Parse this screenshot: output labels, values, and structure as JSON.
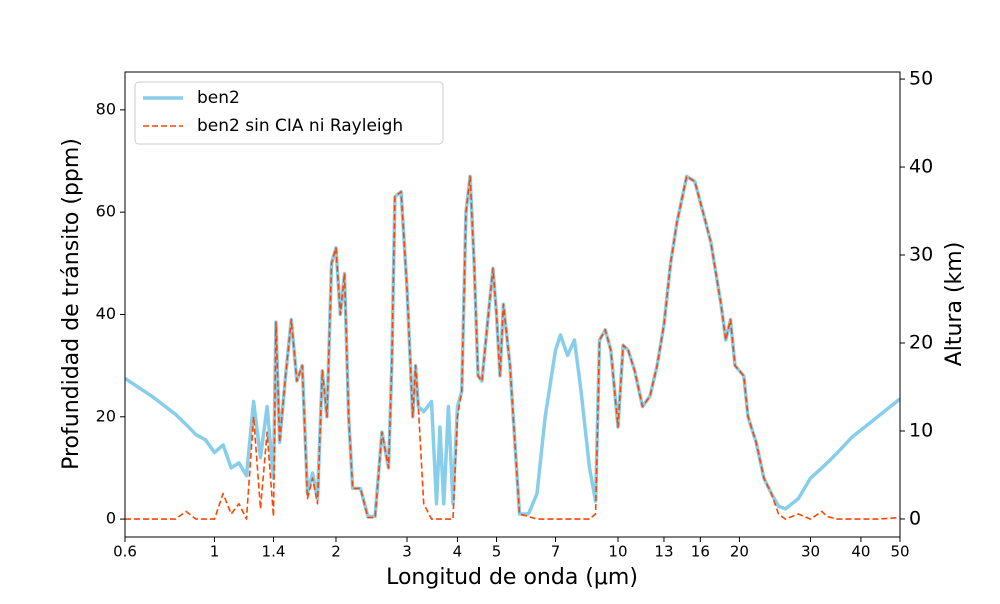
{
  "chart_data": {
    "type": "line",
    "xlabel": "Longitud de onda (μm)",
    "ylabel": "Profundidad de tránsito (ppm)",
    "y2label": "Altura (km)",
    "xscale": "log",
    "xlim": [
      0.6,
      50
    ],
    "xticks": [
      0.6,
      1,
      1.4,
      2,
      3,
      4,
      5,
      7,
      10,
      13,
      16,
      20,
      30,
      40,
      50
    ],
    "ylim": [
      -3.5,
      87.4
    ],
    "yticks": [
      0,
      20,
      40,
      60,
      80
    ],
    "y2lim": [
      -2.05,
      50.8
    ],
    "y2ticks": [
      0,
      10,
      20,
      30,
      40,
      50
    ],
    "legend": "upper left",
    "x": [
      0.6,
      0.7,
      0.8,
      0.85,
      0.9,
      0.95,
      1.0,
      1.05,
      1.1,
      1.15,
      1.2,
      1.25,
      1.3,
      1.35,
      1.4,
      1.42,
      1.45,
      1.5,
      1.55,
      1.6,
      1.65,
      1.7,
      1.75,
      1.8,
      1.85,
      1.9,
      1.95,
      2.0,
      2.05,
      2.1,
      2.15,
      2.2,
      2.3,
      2.4,
      2.5,
      2.6,
      2.7,
      2.75,
      2.8,
      2.9,
      3.0,
      3.1,
      3.15,
      3.2,
      3.3,
      3.45,
      3.55,
      3.62,
      3.7,
      3.8,
      3.9,
      4.0,
      4.1,
      4.2,
      4.3,
      4.4,
      4.5,
      4.6,
      4.8,
      4.9,
      5.0,
      5.1,
      5.2,
      5.4,
      5.5,
      5.7,
      6.0,
      6.3,
      6.6,
      7.0,
      7.2,
      7.5,
      7.8,
      8.1,
      8.5,
      8.8,
      9.0,
      9.3,
      9.6,
      10,
      10.3,
      10.6,
      11,
      11.5,
      12,
      12.5,
      13,
      13.5,
      14,
      14.8,
      15.5,
      16.5,
      17,
      18,
      18.5,
      19,
      19.5,
      20.5,
      21,
      22,
      23,
      24,
      25,
      26,
      28,
      30,
      32,
      33,
      35,
      38,
      44,
      50
    ],
    "series": [
      {
        "name": "ben2",
        "color": "#87ceeb",
        "linestyle": "solid",
        "linewidth": 3.5,
        "values": [
          27.5,
          24,
          20.5,
          18.5,
          16.5,
          15.5,
          13,
          14.5,
          10,
          11,
          8.5,
          23,
          12,
          22,
          8,
          38.5,
          15,
          28,
          39,
          27,
          30,
          5,
          9,
          4,
          29,
          20,
          50,
          53,
          40,
          48,
          20,
          6,
          6,
          0.5,
          0.5,
          17,
          10,
          30,
          63,
          64,
          45,
          20,
          30,
          22,
          21,
          23,
          3,
          18,
          3,
          22,
          3,
          22,
          25,
          60,
          67,
          50,
          28,
          27,
          42,
          49,
          40,
          28,
          42,
          30,
          20,
          1,
          1,
          5,
          20,
          33,
          36,
          32,
          35,
          25,
          10,
          3.5,
          35,
          37,
          33,
          18,
          34,
          33,
          29,
          22,
          24,
          30,
          38,
          50,
          58,
          67,
          66,
          58,
          54,
          42,
          35,
          39,
          30,
          28,
          20,
          15,
          8,
          5,
          2.5,
          2,
          4,
          8,
          10,
          11,
          13,
          16,
          20,
          23.5
        ]
      },
      {
        "name": "ben2 sin CIA ni Rayleigh",
        "color": "#ff4500",
        "linestyle": "dashed",
        "linewidth": 1.6,
        "values": [
          0,
          0,
          0,
          1.5,
          0,
          0,
          0,
          5,
          1,
          3,
          0,
          20,
          2,
          17,
          0.5,
          38.5,
          15,
          28,
          39,
          27,
          30,
          4,
          8,
          3,
          29,
          20,
          50,
          53,
          40,
          48,
          20,
          6,
          6,
          0.3,
          0.3,
          17,
          10,
          30,
          63,
          64,
          45,
          20,
          30,
          22,
          3,
          0,
          0,
          0,
          0,
          0,
          0,
          20,
          25,
          60,
          67,
          50,
          28,
          27,
          42,
          49,
          40,
          28,
          42,
          30,
          20,
          1,
          0.5,
          0,
          0,
          0,
          0,
          0,
          0,
          0,
          0,
          1,
          35,
          37,
          33,
          18,
          34,
          33,
          29,
          22,
          24,
          30,
          38,
          50,
          58,
          67,
          66,
          58,
          54,
          42,
          35,
          39,
          30,
          28,
          20,
          15,
          8,
          5,
          1,
          0,
          1,
          0,
          1.5,
          0.5,
          0,
          0,
          0,
          0.3
        ]
      }
    ]
  }
}
